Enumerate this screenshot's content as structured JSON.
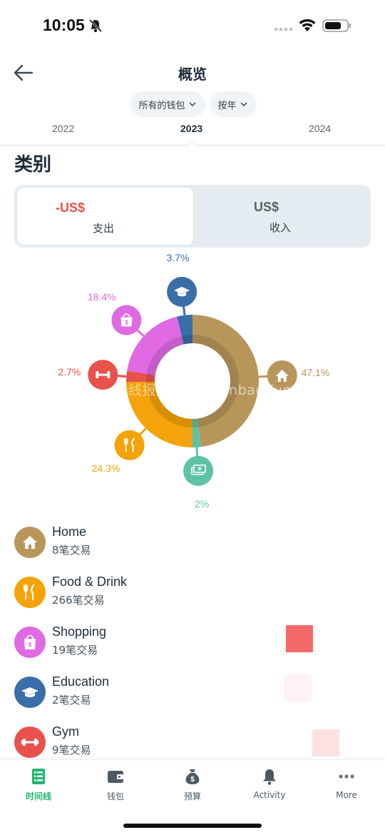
{
  "status_bar": {
    "time": "10:05"
  },
  "header": {
    "title": "概览"
  },
  "filters": [
    {
      "label": "所有的钱包"
    },
    {
      "label": "按年"
    }
  ],
  "year_tabs": [
    {
      "label": "2022",
      "active": false
    },
    {
      "label": "2023",
      "active": true
    },
    {
      "label": "2024",
      "active": false
    }
  ],
  "section_title": "类别",
  "toggle": {
    "expense": {
      "amount": "-US$",
      "label": "支出"
    },
    "income": {
      "amount": "US$",
      "label": "收入"
    }
  },
  "watermark": "线报酷-new.xianbao.fun",
  "colors": {
    "accent": "#22b573",
    "expense_red": "#e8524d",
    "home": "#b8965a",
    "food": "#f5a30a",
    "shopping": "#e06ae3",
    "education": "#3a6ea8",
    "gym": "#e8524d",
    "bills": "#5ec2a6"
  },
  "chart_data": {
    "type": "pie",
    "style": "donut",
    "slices": [
      {
        "name": "Home",
        "percent": 47.1,
        "label": "47.1%",
        "color": "#b8965a",
        "icon": "house-icon"
      },
      {
        "name": "",
        "percent": 2.0,
        "label": "2%",
        "color": "#5ec2a6",
        "icon": "cash-icon"
      },
      {
        "name": "Food & Drink",
        "percent": 24.3,
        "label": "24.3%",
        "color": "#f5a30a",
        "icon": "utensils-icon"
      },
      {
        "name": "Gym",
        "percent": 2.7,
        "label": "2.7%",
        "color": "#e8524d",
        "icon": "dumbbell-icon"
      },
      {
        "name": "Shopping",
        "percent": 18.4,
        "label": "18.4%",
        "color": "#e06ae3",
        "icon": "shopping-bag-icon"
      },
      {
        "name": "Education",
        "percent": 3.7,
        "label": "3.7%",
        "color": "#3a6ea8",
        "icon": "graduation-cap-icon"
      }
    ]
  },
  "categories": [
    {
      "name": "Home",
      "count": "8笔交易",
      "icon": "house-icon",
      "color": "#b8965a"
    },
    {
      "name": "Food & Drink",
      "count": "266笔交易",
      "icon": "utensils-icon",
      "color": "#f5a30a"
    },
    {
      "name": "Shopping",
      "count": "19笔交易",
      "icon": "shopping-bag-icon",
      "color": "#e06ae3"
    },
    {
      "name": "Education",
      "count": "2笔交易",
      "icon": "graduation-cap-icon",
      "color": "#3a6ea8"
    },
    {
      "name": "Gym",
      "count": "9笔交易",
      "icon": "dumbbell-icon",
      "color": "#e8524d"
    }
  ],
  "bottom_nav": [
    {
      "label": "时间线",
      "icon": "timeline-icon",
      "active": true
    },
    {
      "label": "钱包",
      "icon": "wallet-icon",
      "active": false
    },
    {
      "label": "预算",
      "icon": "money-bag-icon",
      "active": false
    },
    {
      "label": "Activity",
      "icon": "bell-icon",
      "active": false
    },
    {
      "label": "More",
      "icon": "more-icon",
      "active": false
    }
  ]
}
